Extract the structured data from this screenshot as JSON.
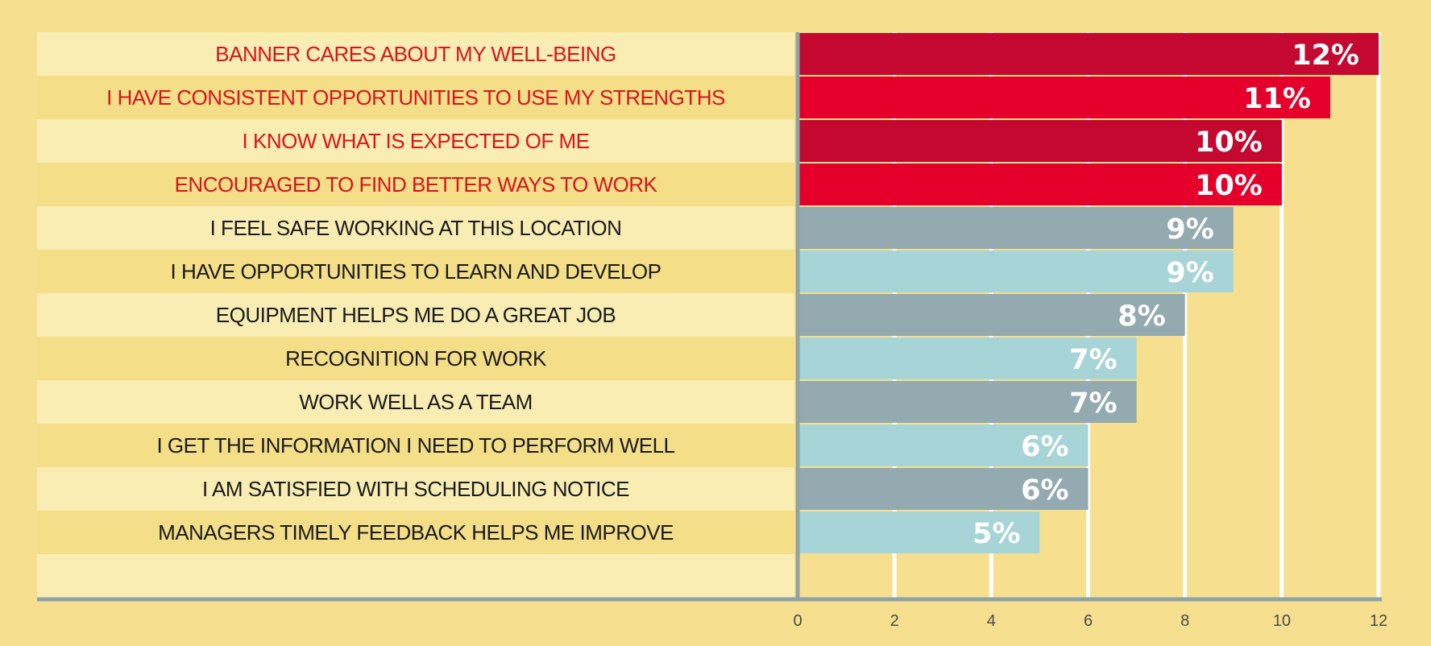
{
  "chart_data": {
    "type": "bar",
    "orientation": "horizontal",
    "categories": [
      "BANNER CARES ABOUT MY WELL-BEING",
      "I HAVE CONSISTENT OPPORTUNITIES TO USE MY STRENGTHS",
      "I KNOW WHAT IS EXPECTED OF ME",
      "ENCOURAGED TO FIND BETTER WAYS TO WORK",
      "I FEEL SAFE WORKING AT THIS LOCATION",
      "I HAVE OPPORTUNITIES TO LEARN AND DEVELOP",
      "EQUIPMENT HELPS ME DO A GREAT JOB",
      "RECOGNITION FOR WORK",
      "WORK WELL AS A TEAM",
      "I GET THE INFORMATION I NEED TO PERFORM WELL",
      "I AM SATISFIED WITH SCHEDULING NOTICE",
      "MANAGERS TIMELY FEEDBACK HELPS ME IMPROVE"
    ],
    "values": [
      12,
      11,
      10,
      10,
      9,
      9,
      8,
      7,
      7,
      6,
      6,
      5
    ],
    "value_labels": [
      "12%",
      "11%",
      "10%",
      "10%",
      "9%",
      "9%",
      "8%",
      "7%",
      "7%",
      "6%",
      "6%",
      "5%"
    ],
    "highlighted": [
      true,
      true,
      true,
      true,
      false,
      false,
      false,
      false,
      false,
      false,
      false,
      false
    ],
    "xlim": [
      0,
      12
    ],
    "xticks": [
      "0",
      "2",
      "4",
      "6",
      "8",
      "10",
      "12"
    ],
    "xtick_values": [
      0,
      2,
      4,
      6,
      8,
      10,
      12
    ],
    "title": "",
    "xlabel": "",
    "ylabel": "",
    "grid": true,
    "colors": {
      "background": "#f6e08f",
      "row_light": "#f9edb4",
      "row_dark": "#f4de88",
      "highlight_dark": "#c4082f",
      "highlight_light": "#e4002b",
      "gray_bar": "#93aab0",
      "teal_bar": "#a7d4d6",
      "highlight_text": "#d7141e",
      "normal_text": "#1a1a1a",
      "axis": "#8fa2a6",
      "grid": "#ffffff"
    }
  }
}
